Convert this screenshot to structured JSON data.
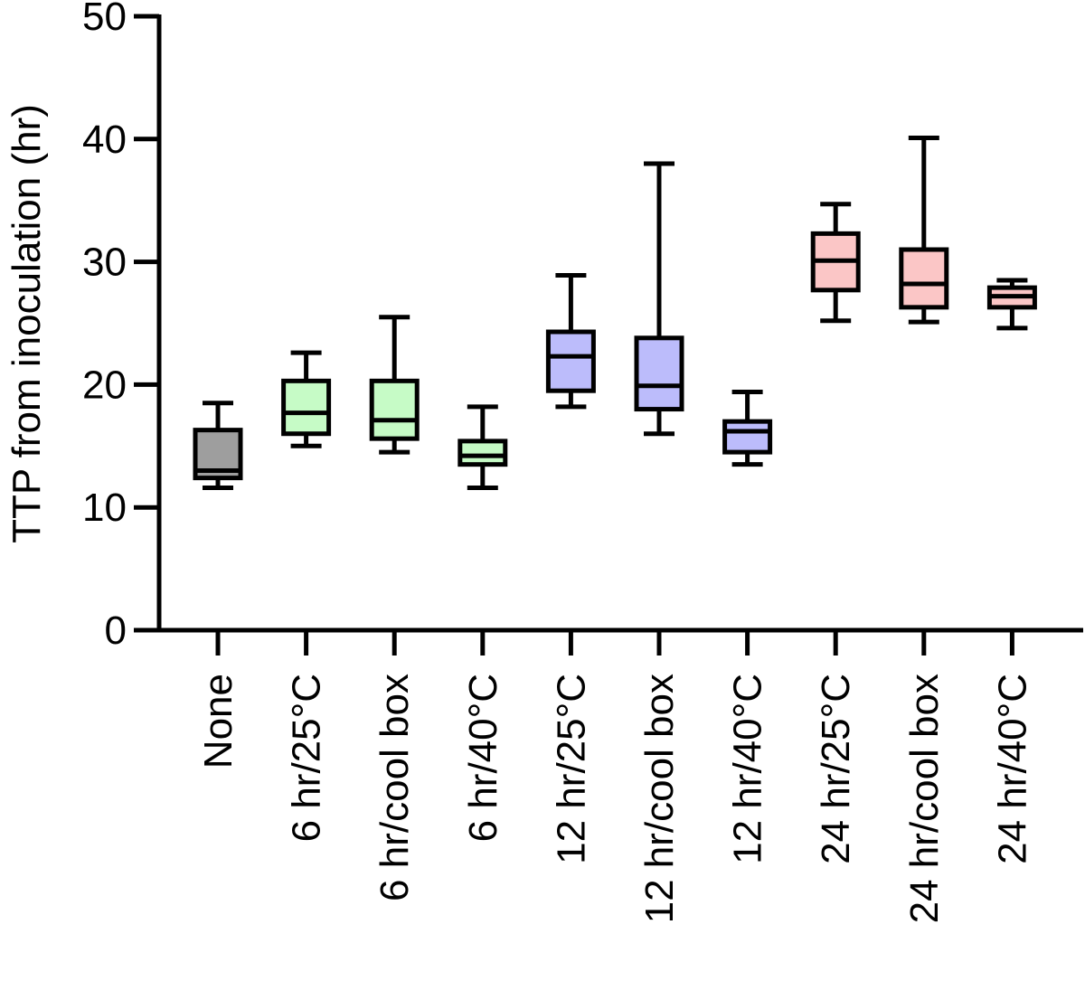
{
  "chart_data": {
    "type": "boxplot",
    "title": "",
    "xlabel": "",
    "ylabel": "TTP from inoculation (hr)",
    "ylim": [
      0,
      50
    ],
    "yticks": [
      0,
      10,
      20,
      30,
      40,
      50
    ],
    "categories": [
      "None",
      "6 hr/25°C",
      "6 hr/cool box",
      "6 hr/40°C",
      "12 hr/25°C",
      "12 hr/cool box",
      "12 hr/40°C",
      "24 hr/25°C",
      "24 hr/cool box",
      "24 hr/40°C"
    ],
    "boxes": [
      {
        "min": 11.6,
        "q1": 12.4,
        "median": 13.0,
        "q3": 16.3,
        "max": 18.5,
        "color": "#9e9e9e"
      },
      {
        "min": 15.0,
        "q1": 16.0,
        "median": 17.7,
        "q3": 20.3,
        "max": 22.6,
        "color": "#c6fbc6"
      },
      {
        "min": 14.5,
        "q1": 15.6,
        "median": 17.1,
        "q3": 20.3,
        "max": 25.5,
        "color": "#c6fbc6"
      },
      {
        "min": 11.6,
        "q1": 13.5,
        "median": 14.2,
        "q3": 15.4,
        "max": 18.2,
        "color": "#c6fbc6"
      },
      {
        "min": 18.2,
        "q1": 19.5,
        "median": 22.3,
        "q3": 24.3,
        "max": 28.9,
        "color": "#bcbcfb"
      },
      {
        "min": 16.0,
        "q1": 18.0,
        "median": 19.9,
        "q3": 23.8,
        "max": 38.0,
        "color": "#bcbcfb"
      },
      {
        "min": 13.5,
        "q1": 14.5,
        "median": 16.2,
        "q3": 17.0,
        "max": 19.4,
        "color": "#bcbcfb"
      },
      {
        "min": 25.2,
        "q1": 27.7,
        "median": 30.1,
        "q3": 32.3,
        "max": 34.7,
        "color": "#fbc6c6"
      },
      {
        "min": 25.1,
        "q1": 26.3,
        "median": 28.2,
        "q3": 31.0,
        "max": 40.1,
        "color": "#fbc6c6"
      },
      {
        "min": 24.6,
        "q1": 26.3,
        "median": 27.2,
        "q3": 27.9,
        "max": 28.5,
        "color": "#fbc6c6"
      }
    ]
  }
}
